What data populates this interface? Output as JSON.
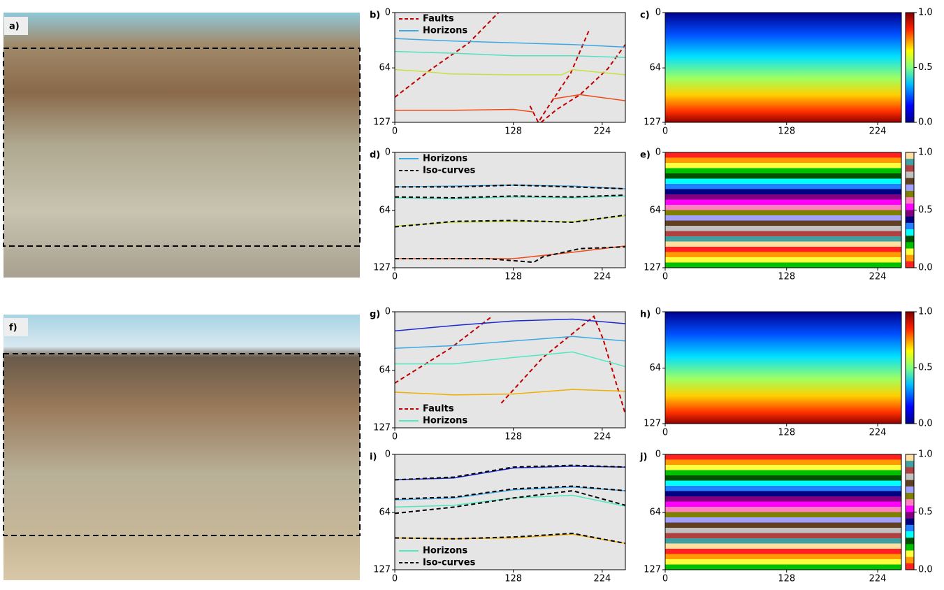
{
  "photos": [
    {
      "label": "a)"
    },
    {
      "label": "f)"
    }
  ],
  "chart_data": [
    {
      "type": "line",
      "label": "b)",
      "xlim": [
        0,
        249
      ],
      "xticks": [
        0,
        128,
        224
      ],
      "ylim": [
        0,
        127
      ],
      "y_inverted": true,
      "yticks": [
        0,
        64,
        127
      ],
      "legend_loc": "upper left",
      "series": [
        {
          "name": "Faults",
          "color": "#c00000",
          "style": "dashed",
          "x": [
            0,
            40,
            80,
            112,
            null,
            146,
            155,
            165,
            190,
            210,
            null,
            158,
            175,
            200,
            230,
            249
          ],
          "values": [
            98,
            65,
            35,
            0,
            null,
            108,
            127,
            110,
            70,
            20,
            null,
            127,
            112,
            95,
            65,
            37
          ]
        },
        {
          "name": "Horizons",
          "color": "#3ba8e6",
          "style": "solid",
          "x": [
            0,
            64,
            128,
            192,
            249
          ],
          "values": [
            30,
            33,
            35,
            37,
            40
          ]
        },
        {
          "color": "#52e0c0",
          "style": "solid",
          "x": [
            0,
            64,
            128,
            192,
            249
          ],
          "values": [
            45,
            47,
            50,
            50,
            52
          ]
        },
        {
          "color": "#c8e040",
          "style": "solid",
          "x": [
            0,
            30,
            60,
            128,
            180,
            192,
            249
          ],
          "values": [
            66,
            68,
            71,
            72,
            72,
            66,
            72
          ]
        },
        {
          "color": "#f04a1a",
          "style": "solid",
          "x": [
            0,
            64,
            128,
            150,
            null,
            170,
            200,
            249
          ],
          "values": [
            113,
            113,
            112,
            115,
            null,
            100,
            95,
            102
          ]
        }
      ]
    },
    {
      "type": "heatmap",
      "label": "c)",
      "colormap": "jet",
      "xlim": [
        0,
        249
      ],
      "xticks": [
        0,
        128,
        224
      ],
      "ylim": [
        0,
        127
      ],
      "y_inverted": true,
      "yticks": [
        0,
        64,
        127
      ],
      "colorbar": {
        "lim": [
          0,
          1
        ],
        "ticks": [
          {
            "value": 0,
            "label": "0.0"
          },
          0.5,
          {
            "value": 1,
            "label": "1.0"
          }
        ]
      }
    },
    {
      "type": "line",
      "label": "d)",
      "xlim": [
        0,
        249
      ],
      "xticks": [
        0,
        128,
        224
      ],
      "ylim": [
        0,
        127
      ],
      "y_inverted": true,
      "yticks": [
        0,
        64,
        127
      ],
      "legend_loc": "upper left",
      "series": [
        {
          "name": "Horizons",
          "color": "#3ba8e6",
          "style": "solid",
          "x": [
            0,
            64,
            128,
            192,
            249
          ],
          "values": [
            38,
            37,
            36,
            37,
            40
          ]
        },
        {
          "color": "#52e0c0",
          "style": "solid",
          "x": [
            0,
            64,
            128,
            192,
            249
          ],
          "values": [
            50,
            51,
            49,
            50,
            48
          ]
        },
        {
          "color": "#c8e040",
          "style": "solid",
          "x": [
            0,
            64,
            128,
            192,
            249
          ],
          "values": [
            81,
            77,
            76,
            76,
            70
          ]
        },
        {
          "color": "#f04a1a",
          "style": "solid",
          "x": [
            0,
            64,
            128,
            192,
            249
          ],
          "values": [
            117,
            117,
            117,
            110,
            103
          ]
        },
        {
          "name": "Iso-curves",
          "color": "#000000",
          "style": "dashed",
          "x": [
            0,
            64,
            128,
            192,
            249,
            null,
            0,
            64,
            128,
            192,
            249,
            null,
            0,
            64,
            128,
            192,
            249,
            null,
            0,
            100,
            150,
            160,
            200,
            249
          ],
          "values": [
            38,
            38,
            36,
            38,
            40,
            null,
            49,
            50,
            48,
            49,
            47,
            null,
            82,
            76,
            75,
            77,
            69,
            null,
            117,
            117,
            121,
            115,
            106,
            104
          ]
        }
      ]
    },
    {
      "type": "heatmap",
      "label": "e)",
      "colormap": "striped",
      "xlim": [
        0,
        249
      ],
      "xticks": [
        0,
        128,
        224
      ],
      "ylim": [
        0,
        127
      ],
      "y_inverted": true,
      "yticks": [
        0,
        64,
        127
      ],
      "colorbar": {
        "lim": [
          0,
          1
        ],
        "ticks": [
          {
            "value": 0,
            "label": "0.0"
          },
          0.5,
          {
            "value": 1,
            "label": "1.0"
          }
        ]
      }
    },
    {
      "type": "line",
      "label": "g)",
      "xlim": [
        0,
        249
      ],
      "xticks": [
        0,
        128,
        224
      ],
      "ylim": [
        0,
        127
      ],
      "y_inverted": true,
      "yticks": [
        0,
        64,
        127
      ],
      "legend_loc": "lower left",
      "series": [
        {
          "name": "Faults",
          "color": "#c00000",
          "style": "dashed",
          "x": [
            0,
            60,
            105,
            null,
            115,
            160,
            215,
            225,
            249
          ],
          "values": [
            78,
            40,
            5,
            null,
            100,
            50,
            5,
            30,
            112
          ]
        },
        {
          "name": "Horizons",
          "color": "#50e8c0",
          "style": "solid",
          "x": [
            0,
            64,
            128,
            192,
            249
          ],
          "values": [
            57,
            57,
            50,
            44,
            60
          ]
        },
        {
          "color": "#1a2ad0",
          "style": "solid",
          "x": [
            0,
            64,
            128,
            192,
            249
          ],
          "values": [
            21,
            15,
            10,
            8,
            13
          ]
        },
        {
          "color": "#3ba8e6",
          "style": "solid",
          "x": [
            0,
            64,
            128,
            192,
            249
          ],
          "values": [
            40,
            37,
            32,
            27,
            32
          ]
        },
        {
          "color": "#f0b000",
          "style": "solid",
          "x": [
            0,
            64,
            128,
            192,
            249
          ],
          "values": [
            88,
            91,
            90,
            85,
            87
          ]
        }
      ]
    },
    {
      "type": "heatmap",
      "label": "h)",
      "colormap": "jet",
      "xlim": [
        0,
        249
      ],
      "xticks": [
        0,
        128,
        224
      ],
      "ylim": [
        0,
        127
      ],
      "y_inverted": true,
      "yticks": [
        0,
        64,
        127
      ],
      "colorbar": {
        "lim": [
          0,
          1
        ],
        "ticks": [
          {
            "value": 0,
            "label": "0.0"
          },
          0.5,
          {
            "value": 1,
            "label": "1.0"
          }
        ]
      }
    },
    {
      "type": "line",
      "label": "i)",
      "xlim": [
        0,
        249
      ],
      "xticks": [
        0,
        128,
        224
      ],
      "ylim": [
        0,
        127
      ],
      "y_inverted": true,
      "yticks": [
        0,
        64,
        127
      ],
      "legend_loc": "lower left",
      "series": [
        {
          "name": "Horizons",
          "color": "#50e8c0",
          "style": "solid",
          "x": [
            0,
            64,
            128,
            192,
            249
          ],
          "values": [
            58,
            56,
            48,
            45,
            57
          ]
        },
        {
          "color": "#1a2ad0",
          "style": "solid",
          "x": [
            0,
            64,
            128,
            192,
            249
          ],
          "values": [
            28,
            26,
            15,
            13,
            14
          ]
        },
        {
          "color": "#3ba8e6",
          "style": "solid",
          "x": [
            0,
            64,
            128,
            192,
            249
          ],
          "values": [
            50,
            48,
            39,
            36,
            40
          ]
        },
        {
          "color": "#f0b000",
          "style": "solid",
          "x": [
            0,
            64,
            128,
            192,
            249
          ],
          "values": [
            92,
            93,
            92,
            88,
            98
          ]
        },
        {
          "name": "Iso-curves",
          "color": "#000000",
          "style": "dashed",
          "x": [
            0,
            64,
            128,
            192,
            249,
            null,
            0,
            64,
            128,
            192,
            249,
            null,
            0,
            64,
            128,
            192,
            249,
            null,
            0,
            64,
            128,
            192,
            249
          ],
          "values": [
            28,
            25,
            14,
            12,
            14,
            null,
            49,
            47,
            38,
            35,
            40,
            null,
            65,
            58,
            48,
            40,
            56,
            null,
            92,
            93,
            91,
            87,
            98
          ]
        }
      ]
    },
    {
      "type": "heatmap",
      "label": "j)",
      "colormap": "striped",
      "xlim": [
        0,
        249
      ],
      "xticks": [
        0,
        128,
        224
      ],
      "ylim": [
        0,
        127
      ],
      "y_inverted": true,
      "yticks": [
        0,
        64,
        127
      ],
      "colorbar": {
        "lim": [
          0,
          1
        ],
        "ticks": [
          {
            "value": 0,
            "label": "0.0"
          },
          0.5,
          {
            "value": 1,
            "label": "1.0"
          }
        ]
      }
    }
  ]
}
